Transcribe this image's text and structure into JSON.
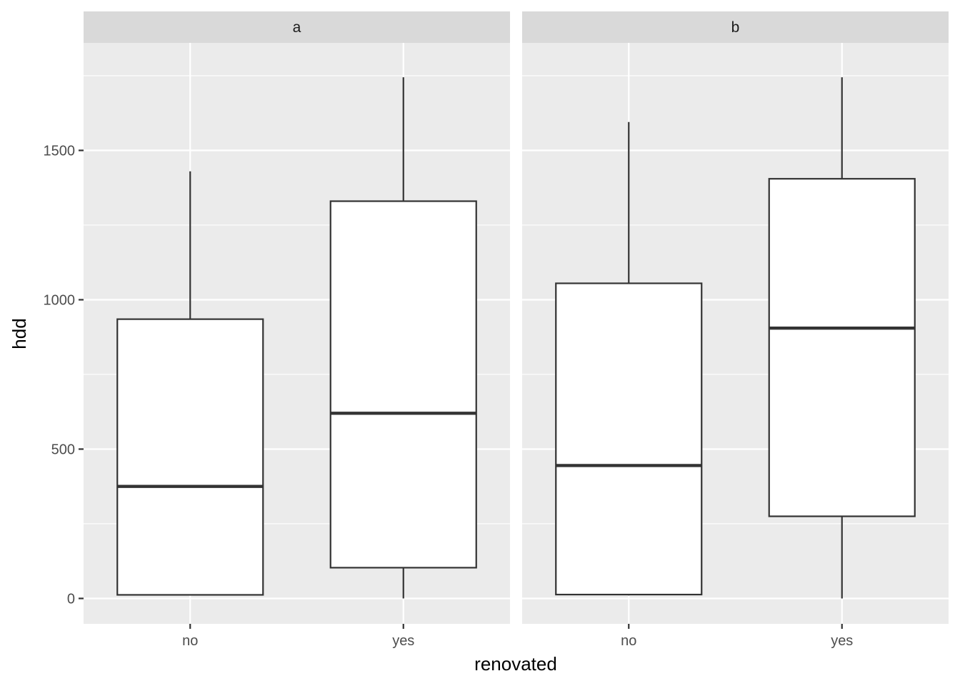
{
  "chart_data": {
    "type": "boxplot",
    "xlabel": "renovated",
    "ylabel": "hdd",
    "ylim": [
      -85,
      1860
    ],
    "yticks": [
      0,
      500,
      1000,
      1500
    ],
    "y_minor_ticks": [
      250,
      750,
      1250,
      1750
    ],
    "categories": [
      "no",
      "yes"
    ],
    "grid": true,
    "panel_background": "#ebebeb",
    "strip_background": "#d9d9d9",
    "box_fill": "#ffffff",
    "box_stroke": "#333333",
    "facets": [
      {
        "label": "a",
        "boxes": [
          {
            "category": "no",
            "whisker_low": 10,
            "q1": 12,
            "median": 375,
            "q3": 935,
            "whisker_high": 1430
          },
          {
            "category": "yes",
            "whisker_low": 0,
            "q1": 103,
            "median": 620,
            "q3": 1330,
            "whisker_high": 1745
          }
        ]
      },
      {
        "label": "b",
        "boxes": [
          {
            "category": "no",
            "whisker_low": 10,
            "q1": 13,
            "median": 445,
            "q3": 1055,
            "whisker_high": 1595
          },
          {
            "category": "yes",
            "whisker_low": 0,
            "q1": 275,
            "median": 905,
            "q3": 1405,
            "whisker_high": 1745
          }
        ]
      }
    ]
  }
}
